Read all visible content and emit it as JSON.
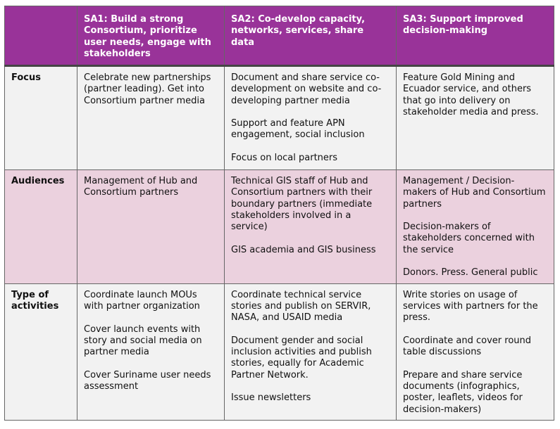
{
  "header": {
    "col1": "",
    "col2": "SA1: Build a strong Consortium, prioritize user needs, engage with stakeholders",
    "col3": "SA2: Co-develop capacity, networks, services, share data",
    "col4": "SA3: Support improved decision-making"
  },
  "rows": {
    "focus": {
      "label": "Focus",
      "sa1": [
        "Celebrate new partnerships (partner leading). Get into Consortium partner media"
      ],
      "sa2": [
        "Document and share service co-development on website and co-developing partner media",
        "Support and feature APN engagement, social inclusion",
        "Focus on local partners"
      ],
      "sa3": [
        "Feature Gold Mining and Ecuador service, and others that go into delivery on stakeholder media and press."
      ]
    },
    "audiences": {
      "label": "Audiences",
      "sa1": [
        "Management of Hub and Consortium partners"
      ],
      "sa2": [
        "Technical GIS staff of Hub and Consortium partners with their boundary partners (immediate stakeholders involved in a service)",
        "GIS academia and GIS business"
      ],
      "sa3": [
        "Management / Decision-makers of Hub and Consortium partners",
        "Decision-makers of stakeholders concerned with the service",
        "Donors. Press. General public"
      ]
    },
    "type": {
      "label": "Type of activities",
      "sa1": [
        "Coordinate launch MOUs with partner organization",
        "Cover  launch events with story and social media on partner media",
        "Cover Suriname user needs assessment"
      ],
      "sa2": [
        "Coordinate technical service stories and publish on SERVIR, NASA, and USAID media",
        "Document gender and social inclusion activities and publish stories, equally for Academic Partner Network.",
        "Issue newsletters"
      ],
      "sa3": [
        "Write stories on usage of services with partners for the press.",
        "Coordinate and cover round table discussions",
        "Prepare and share service documents (infographics, poster, leaflets, videos for decision-makers)"
      ]
    }
  }
}
